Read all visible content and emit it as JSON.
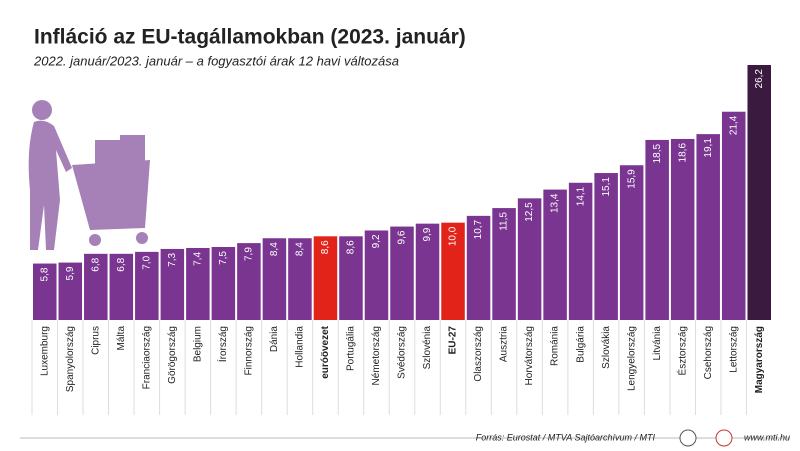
{
  "chart_data": {
    "type": "bar",
    "title": "Infláció az EU-tagállamokban (2023. január)",
    "subtitle": "2022. január/2023. január – a fogyasztói árak 12 havi változása",
    "categories": [
      "Luxemburg",
      "Spanyolország",
      "Ciprus",
      "Málta",
      "Franciaország",
      "Görögország",
      "Belgium",
      "Írország",
      "Finnország",
      "Dánia",
      "Hollandia",
      "euróövezet",
      "Portugália",
      "Németország",
      "Svédország",
      "Szlovénia",
      "EU-27",
      "Olaszország",
      "Ausztria",
      "Horvátország",
      "Románia",
      "Bulgária",
      "Szlovákia",
      "Lengyelország",
      "Litvánia",
      "Észtország",
      "Csehország",
      "Lettország",
      "Magyarország"
    ],
    "values": [
      5.8,
      5.9,
      6.8,
      6.8,
      7.0,
      7.3,
      7.4,
      7.5,
      7.9,
      8.4,
      8.4,
      8.6,
      8.6,
      9.2,
      9.6,
      9.9,
      10.0,
      10.7,
      11.5,
      12.5,
      13.4,
      14.1,
      15.1,
      15.9,
      18.5,
      18.6,
      19.1,
      21.4,
      26.2
    ],
    "value_labels": [
      "5,8",
      "5,9",
      "6,8",
      "6,8",
      "7,0",
      "7,3",
      "7,4",
      "7,5",
      "7,9",
      "8,4",
      "8,4",
      "8,6",
      "8,6",
      "9,2",
      "9,6",
      "9,9",
      "10,0",
      "10,7",
      "11,5",
      "12,5",
      "13,4",
      "14,1",
      "15,1",
      "15,9",
      "18,5",
      "18,6",
      "19,1",
      "21,4",
      "26,2"
    ],
    "color": "#7a3590",
    "colors": [
      "#7a3590",
      "#7a3590",
      "#7a3590",
      "#7a3590",
      "#7a3590",
      "#7a3590",
      "#7a3590",
      "#7a3590",
      "#7a3590",
      "#7a3590",
      "#7a3590",
      "#e2231a",
      "#7a3590",
      "#7a3590",
      "#7a3590",
      "#7a3590",
      "#e2231a",
      "#7a3590",
      "#7a3590",
      "#7a3590",
      "#7a3590",
      "#7a3590",
      "#7a3590",
      "#7a3590",
      "#7a3590",
      "#7a3590",
      "#7a3590",
      "#7a3590",
      "#3b1a40"
    ],
    "source": "Forrás: Eurostat / MTVA Sajtóarchívum / MTI",
    "website": "www.mti.hu"
  }
}
